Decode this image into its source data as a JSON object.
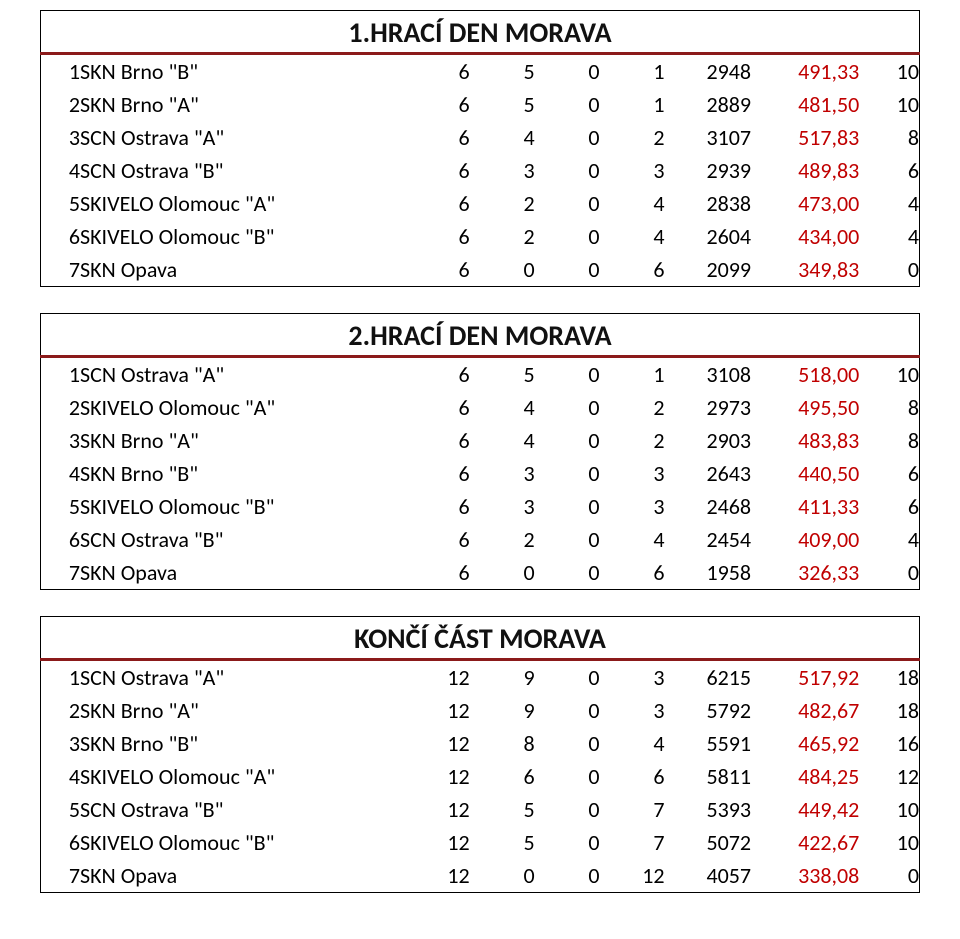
{
  "sections": [
    {
      "title": "1.HRACÍ DEN MORAVA",
      "rows": [
        {
          "rank": "1",
          "team": "SKN Brno \"B\"",
          "c1": "6",
          "c2": "5",
          "c3": "0",
          "c4": "1",
          "c5": "2948",
          "avg": "491,33",
          "pts": "10"
        },
        {
          "rank": "2",
          "team": "SKN Brno \"A\"",
          "c1": "6",
          "c2": "5",
          "c3": "0",
          "c4": "1",
          "c5": "2889",
          "avg": "481,50",
          "pts": "10"
        },
        {
          "rank": "3",
          "team": "SCN Ostrava \"A\"",
          "c1": "6",
          "c2": "4",
          "c3": "0",
          "c4": "2",
          "c5": "3107",
          "avg": "517,83",
          "pts": "8"
        },
        {
          "rank": "4",
          "team": "SCN Ostrava \"B\"",
          "c1": "6",
          "c2": "3",
          "c3": "0",
          "c4": "3",
          "c5": "2939",
          "avg": "489,83",
          "pts": "6"
        },
        {
          "rank": "5",
          "team": "SKIVELO Olomouc \"A\"",
          "c1": "6",
          "c2": "2",
          "c3": "0",
          "c4": "4",
          "c5": "2838",
          "avg": "473,00",
          "pts": "4"
        },
        {
          "rank": "6",
          "team": "SKIVELO Olomouc \"B\"",
          "c1": "6",
          "c2": "2",
          "c3": "0",
          "c4": "4",
          "c5": "2604",
          "avg": "434,00",
          "pts": "4"
        },
        {
          "rank": "7",
          "team": "SKN Opava",
          "c1": "6",
          "c2": "0",
          "c3": "0",
          "c4": "6",
          "c5": "2099",
          "avg": "349,83",
          "pts": "0"
        }
      ]
    },
    {
      "title": "2.HRACÍ DEN MORAVA",
      "rows": [
        {
          "rank": "1",
          "team": "SCN Ostrava \"A\"",
          "c1": "6",
          "c2": "5",
          "c3": "0",
          "c4": "1",
          "c5": "3108",
          "avg": "518,00",
          "pts": "10"
        },
        {
          "rank": "2",
          "team": "SKIVELO Olomouc \"A\"",
          "c1": "6",
          "c2": "4",
          "c3": "0",
          "c4": "2",
          "c5": "2973",
          "avg": "495,50",
          "pts": "8"
        },
        {
          "rank": "3",
          "team": "SKN Brno \"A\"",
          "c1": "6",
          "c2": "4",
          "c3": "0",
          "c4": "2",
          "c5": "2903",
          "avg": "483,83",
          "pts": "8"
        },
        {
          "rank": "4",
          "team": "SKN Brno \"B\"",
          "c1": "6",
          "c2": "3",
          "c3": "0",
          "c4": "3",
          "c5": "2643",
          "avg": "440,50",
          "pts": "6"
        },
        {
          "rank": "5",
          "team": "SKIVELO Olomouc \"B\"",
          "c1": "6",
          "c2": "3",
          "c3": "0",
          "c4": "3",
          "c5": "2468",
          "avg": "411,33",
          "pts": "6"
        },
        {
          "rank": "6",
          "team": "SCN Ostrava \"B\"",
          "c1": "6",
          "c2": "2",
          "c3": "0",
          "c4": "4",
          "c5": "2454",
          "avg": "409,00",
          "pts": "4"
        },
        {
          "rank": "7",
          "team": "SKN Opava",
          "c1": "6",
          "c2": "0",
          "c3": "0",
          "c4": "6",
          "c5": "1958",
          "avg": "326,33",
          "pts": "0"
        }
      ]
    },
    {
      "title": "KONČÍ ČÁST MORAVA",
      "rows": [
        {
          "rank": "1",
          "team": "SCN Ostrava \"A\"",
          "c1": "12",
          "c2": "9",
          "c3": "0",
          "c4": "3",
          "c5": "6215",
          "avg": "517,92",
          "pts": "18"
        },
        {
          "rank": "2",
          "team": "SKN Brno \"A\"",
          "c1": "12",
          "c2": "9",
          "c3": "0",
          "c4": "3",
          "c5": "5792",
          "avg": "482,67",
          "pts": "18"
        },
        {
          "rank": "3",
          "team": "SKN Brno \"B\"",
          "c1": "12",
          "c2": "8",
          "c3": "0",
          "c4": "4",
          "c5": "5591",
          "avg": "465,92",
          "pts": "16"
        },
        {
          "rank": "4",
          "team": "SKIVELO Olomouc \"A\"",
          "c1": "12",
          "c2": "6",
          "c3": "0",
          "c4": "6",
          "c5": "5811",
          "avg": "484,25",
          "pts": "12"
        },
        {
          "rank": "5",
          "team": "SCN Ostrava \"B\"",
          "c1": "12",
          "c2": "5",
          "c3": "0",
          "c4": "7",
          "c5": "5393",
          "avg": "449,42",
          "pts": "10"
        },
        {
          "rank": "6",
          "team": "SKIVELO Olomouc \"B\"",
          "c1": "12",
          "c2": "5",
          "c3": "0",
          "c4": "7",
          "c5": "5072",
          "avg": "422,67",
          "pts": "10"
        },
        {
          "rank": "7",
          "team": "SKN Opava",
          "c1": "12",
          "c2": "0",
          "c3": "0",
          "c4": "12",
          "c5": "4057",
          "avg": "338,08",
          "pts": "0"
        }
      ]
    }
  ],
  "colors": {
    "title_rule": "#8b1a1a",
    "avg_color": "#c00000",
    "text_color": "#111111",
    "background": "#ffffff"
  },
  "typography": {
    "title_fontsize_pt": 20,
    "row_fontsize_pt": 16,
    "font_family": "Calibri"
  }
}
